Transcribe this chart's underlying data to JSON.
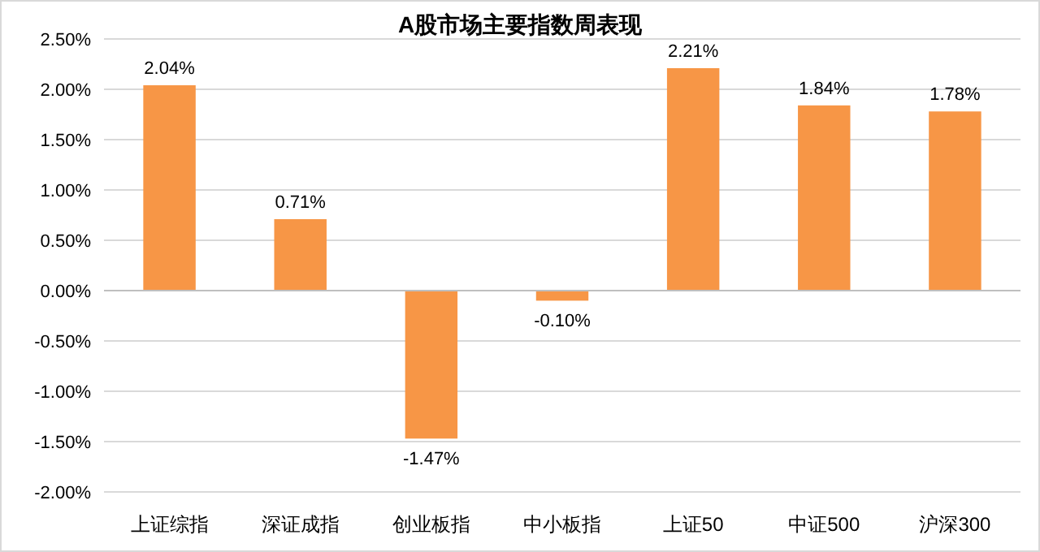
{
  "chart_data": {
    "type": "bar",
    "title": "A股市场主要指数周表现",
    "categories": [
      "上证综指",
      "深证成指",
      "创业板指",
      "中小板指",
      "上证50",
      "中证500",
      "沪深300"
    ],
    "values": [
      2.04,
      0.71,
      -1.47,
      -0.1,
      2.21,
      1.84,
      1.78
    ],
    "value_labels": [
      "2.04%",
      "0.71%",
      "-1.47%",
      "-0.10%",
      "2.21%",
      "1.84%",
      "1.78%"
    ],
    "color": "#f79646",
    "ylim": [
      -2.0,
      2.5
    ],
    "yticks": [
      {
        "value": -2.0,
        "label": "-2.00%"
      },
      {
        "value": -1.5,
        "label": "-1.50%"
      },
      {
        "value": -1.0,
        "label": "-1.00%"
      },
      {
        "value": -0.5,
        "label": "-0.50%"
      },
      {
        "value": 0,
        "label": "0.00%"
      },
      {
        "value": 0.5,
        "label": "0.50%"
      },
      {
        "value": 1.0,
        "label": "1.00%"
      },
      {
        "value": 1.5,
        "label": "1.50%"
      },
      {
        "value": 2.0,
        "label": "2.00%"
      },
      {
        "value": 2.5,
        "label": "2.50%"
      }
    ],
    "grid": "y"
  }
}
